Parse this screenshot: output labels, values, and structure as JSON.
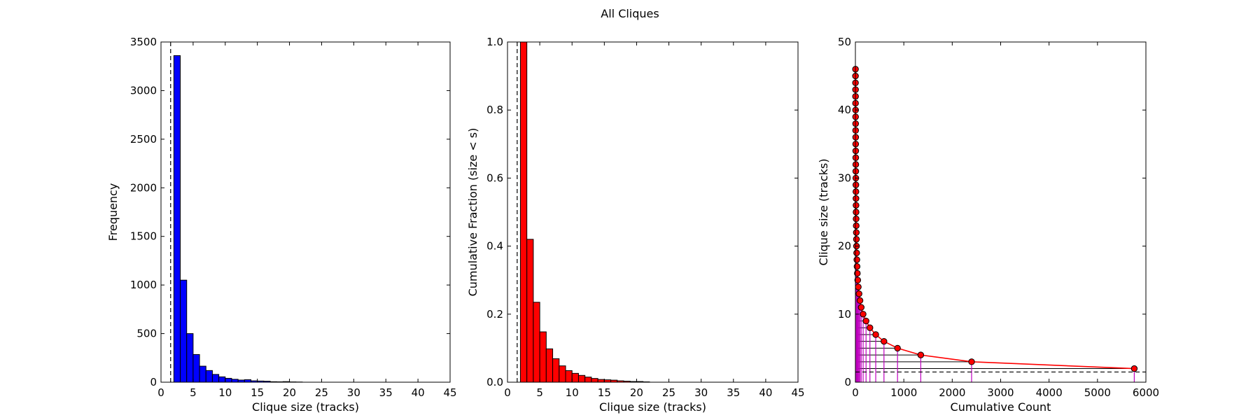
{
  "figure": {
    "title": "All Cliques"
  },
  "colors": {
    "hist_fill": "#0000ff",
    "cdf_fill": "#ff0000",
    "line_color": "#ff0000",
    "marker_fill": "#ff0000",
    "vline_color": "#bf00bf",
    "hline_color": "#000000",
    "dashed_color": "#000000"
  },
  "chart_data": [
    {
      "type": "bar",
      "title": "",
      "xlabel": "Clique size (tracks)",
      "ylabel": "Frequency",
      "xlim": [
        0,
        45
      ],
      "ylim": [
        0,
        3500
      ],
      "xticks": [
        0,
        5,
        10,
        15,
        20,
        25,
        30,
        35,
        40,
        45
      ],
      "yticks": [
        0,
        500,
        1000,
        1500,
        2000,
        2500,
        3000,
        3500
      ],
      "bin_width": 1,
      "bins_start": [
        2,
        3,
        4,
        5,
        6,
        7,
        8,
        9,
        10,
        11,
        12,
        13,
        14,
        15,
        16,
        17,
        18,
        19,
        20,
        21
      ],
      "values": [
        3360,
        1050,
        500,
        285,
        165,
        120,
        80,
        55,
        40,
        30,
        22,
        26,
        14,
        12,
        10,
        5,
        4,
        6,
        3,
        2
      ],
      "reference_line": {
        "x": 1.5,
        "style": "dashed"
      },
      "grid": false
    },
    {
      "type": "bar",
      "title": "",
      "xlabel": "Clique size (tracks)",
      "ylabel": "Cumulative Fraction (size < s)",
      "xlim": [
        0,
        45
      ],
      "ylim": [
        0,
        1.0
      ],
      "xticks": [
        0,
        5,
        10,
        15,
        20,
        25,
        30,
        35,
        40,
        45
      ],
      "yticks": [
        0.0,
        0.2,
        0.4,
        0.6,
        0.8,
        1.0
      ],
      "bin_width": 1,
      "bins_start": [
        2,
        3,
        4,
        5,
        6,
        7,
        8,
        9,
        10,
        11,
        12,
        13,
        14,
        15,
        16,
        17,
        18,
        19,
        20,
        21
      ],
      "values": [
        1.0,
        0.42,
        0.235,
        0.148,
        0.098,
        0.069,
        0.048,
        0.034,
        0.026,
        0.02,
        0.015,
        0.011,
        0.008,
        0.007,
        0.006,
        0.004,
        0.003,
        0.002,
        0.002,
        0.001
      ],
      "reference_line": {
        "x": 1.5,
        "style": "dashed"
      },
      "grid": false
    },
    {
      "type": "line",
      "title": "",
      "xlabel": "Cumulative Count",
      "ylabel": "Clique size (tracks)",
      "xlim": [
        0,
        6000
      ],
      "ylim": [
        0,
        50
      ],
      "xticks": [
        0,
        1000,
        2000,
        3000,
        4000,
        5000,
        6000
      ],
      "yticks": [
        0,
        10,
        20,
        30,
        40,
        50
      ],
      "series": [
        {
          "x": [
            5760,
            2400,
            1350,
            870,
            590,
            420,
            300,
            220,
            160,
            120,
            95,
            75,
            60,
            48,
            40,
            34,
            30,
            26,
            23,
            21,
            19,
            17,
            15,
            14,
            13,
            12,
            11,
            10,
            9,
            8,
            8,
            7,
            7,
            6,
            6,
            5,
            5,
            4,
            4,
            3,
            3,
            3,
            2,
            2,
            2
          ],
          "y": [
            2,
            3,
            4,
            5,
            6,
            7,
            8,
            9,
            10,
            11,
            12,
            13,
            14,
            15,
            16,
            17,
            18,
            19,
            20,
            21,
            22,
            23,
            24,
            25,
            26,
            27,
            28,
            29,
            30,
            31,
            32,
            33,
            34,
            35,
            36,
            37,
            38,
            39,
            40,
            41,
            42,
            43,
            44,
            45,
            46
          ]
        }
      ],
      "reference_line": {
        "y": 1.5,
        "style": "dashed"
      },
      "grid": false
    }
  ]
}
